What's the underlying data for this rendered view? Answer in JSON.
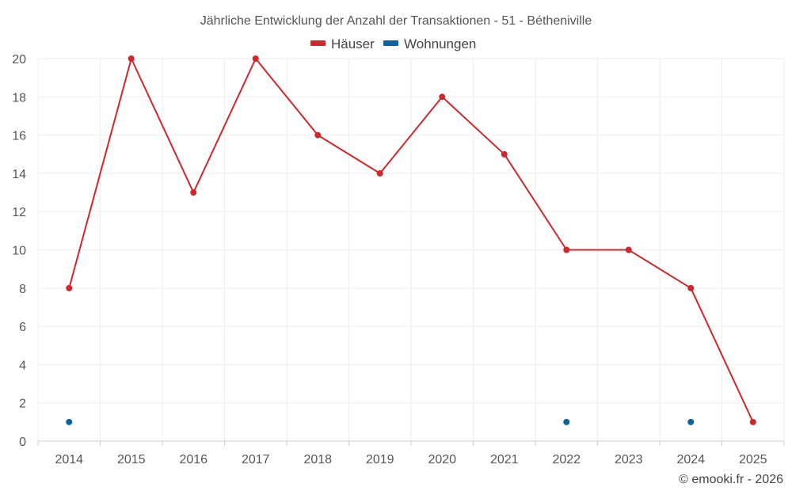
{
  "chart_data": {
    "type": "line",
    "title": "Jährliche Entwicklung der Anzahl der Transaktionen - 51 - Bétheniville",
    "categories": [
      "2014",
      "2015",
      "2016",
      "2017",
      "2018",
      "2019",
      "2020",
      "2021",
      "2022",
      "2023",
      "2024",
      "2025"
    ],
    "series": [
      {
        "name": "Häuser",
        "color": "#d1262b",
        "values": [
          8,
          20,
          13,
          20,
          16,
          14,
          18,
          15,
          10,
          10,
          8,
          1
        ]
      },
      {
        "name": "Wohnungen",
        "color": "#0b64a0",
        "values": [
          1,
          null,
          null,
          null,
          null,
          null,
          null,
          null,
          1,
          null,
          1,
          null
        ]
      }
    ],
    "ylim": [
      0,
      20
    ],
    "yticks": [
      0,
      2,
      4,
      6,
      8,
      10,
      12,
      14,
      16,
      18,
      20
    ],
    "grid": true,
    "legend_position": "top-center"
  },
  "credit": "© emooki.fr - 2026"
}
